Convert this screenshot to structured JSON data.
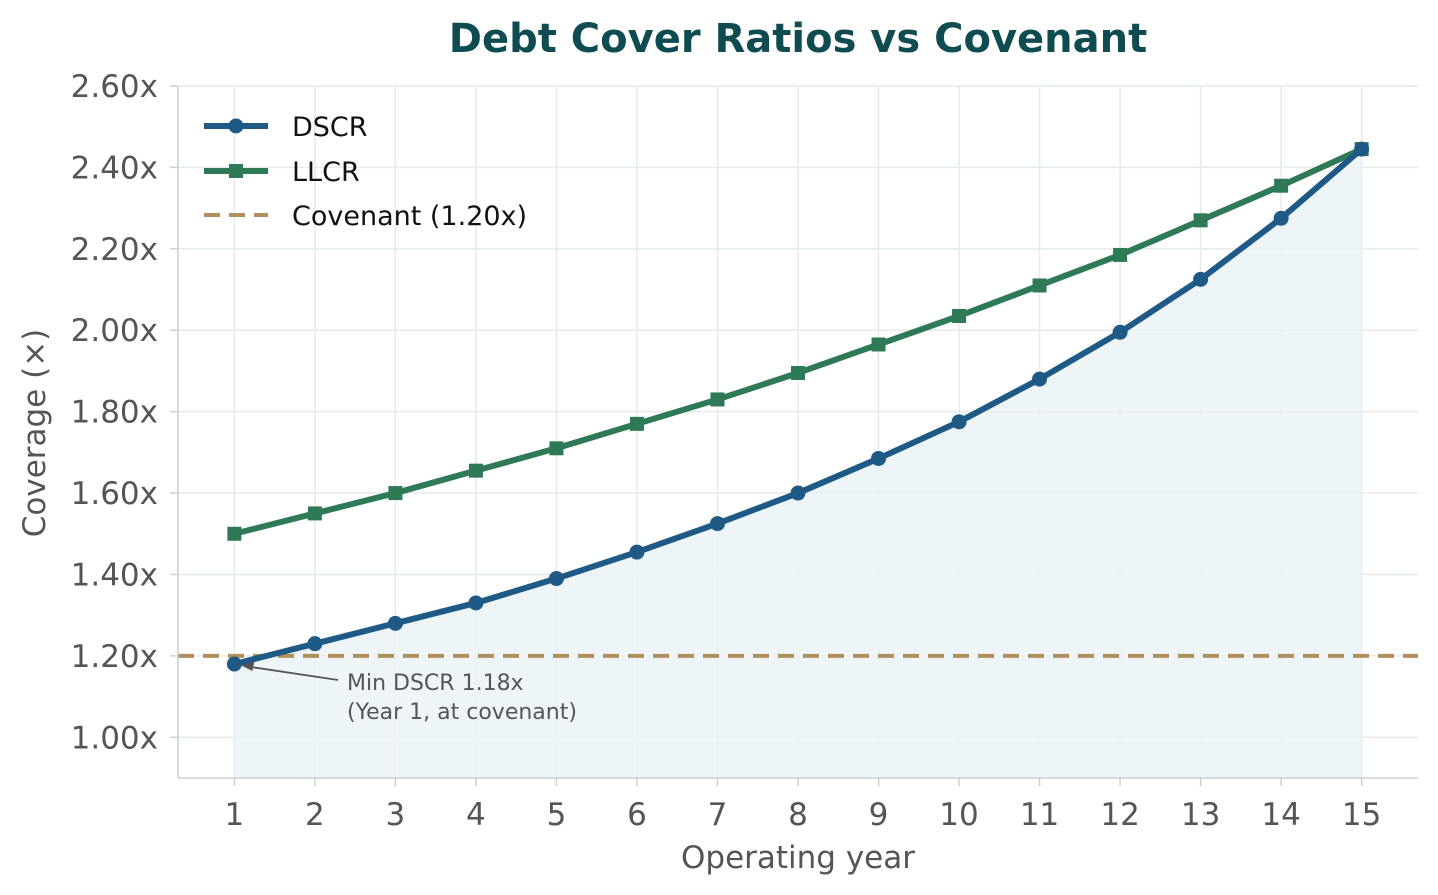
{
  "chart_data": {
    "type": "line",
    "title": "Debt Cover Ratios vs Covenant",
    "xlabel": "Operating year",
    "ylabel": "Coverage (×)",
    "x": [
      1,
      2,
      3,
      4,
      5,
      6,
      7,
      8,
      9,
      10,
      11,
      12,
      13,
      14,
      15
    ],
    "ylim": [
      0.9,
      2.6
    ],
    "xlim": [
      0.3,
      15.7
    ],
    "yticks": [
      1.0,
      1.2,
      1.4,
      1.6,
      1.8,
      2.0,
      2.2,
      2.4,
      2.6
    ],
    "ytick_labels": [
      "1.00x",
      "1.20x",
      "1.40x",
      "1.60x",
      "1.80x",
      "2.00x",
      "2.20x",
      "2.40x",
      "2.60x"
    ],
    "xtick_labels": [
      "1",
      "2",
      "3",
      "4",
      "5",
      "6",
      "7",
      "8",
      "9",
      "10",
      "11",
      "12",
      "13",
      "14",
      "15"
    ],
    "grid": true,
    "legend_position": "top-left",
    "series": [
      {
        "name": "DSCR",
        "marker": "circle",
        "color": "#1f5a87",
        "fill": true,
        "values": [
          1.18,
          1.23,
          1.28,
          1.33,
          1.39,
          1.455,
          1.525,
          1.6,
          1.685,
          1.775,
          1.88,
          1.995,
          2.125,
          2.275,
          2.445
        ]
      },
      {
        "name": "LLCR",
        "marker": "square",
        "color": "#2e7a57",
        "fill": false,
        "values": [
          1.5,
          1.55,
          1.6,
          1.655,
          1.71,
          1.77,
          1.83,
          1.895,
          1.965,
          2.035,
          2.11,
          2.185,
          2.27,
          2.355,
          2.445
        ]
      }
    ],
    "covenant": {
      "name": "Covenant (1.20x)",
      "value": 1.2,
      "color": "#b08f5a"
    },
    "annotation": {
      "lines": [
        "Min DSCR 1.18x",
        "(Year 1, at covenant)"
      ],
      "x": 1,
      "y": 1.18
    },
    "colors": {
      "title": "#0f4c52",
      "axis_text": "#555555",
      "grid": "#e4ebea",
      "spine": "#c8d1d0",
      "fill": "#eaf2f8"
    }
  }
}
